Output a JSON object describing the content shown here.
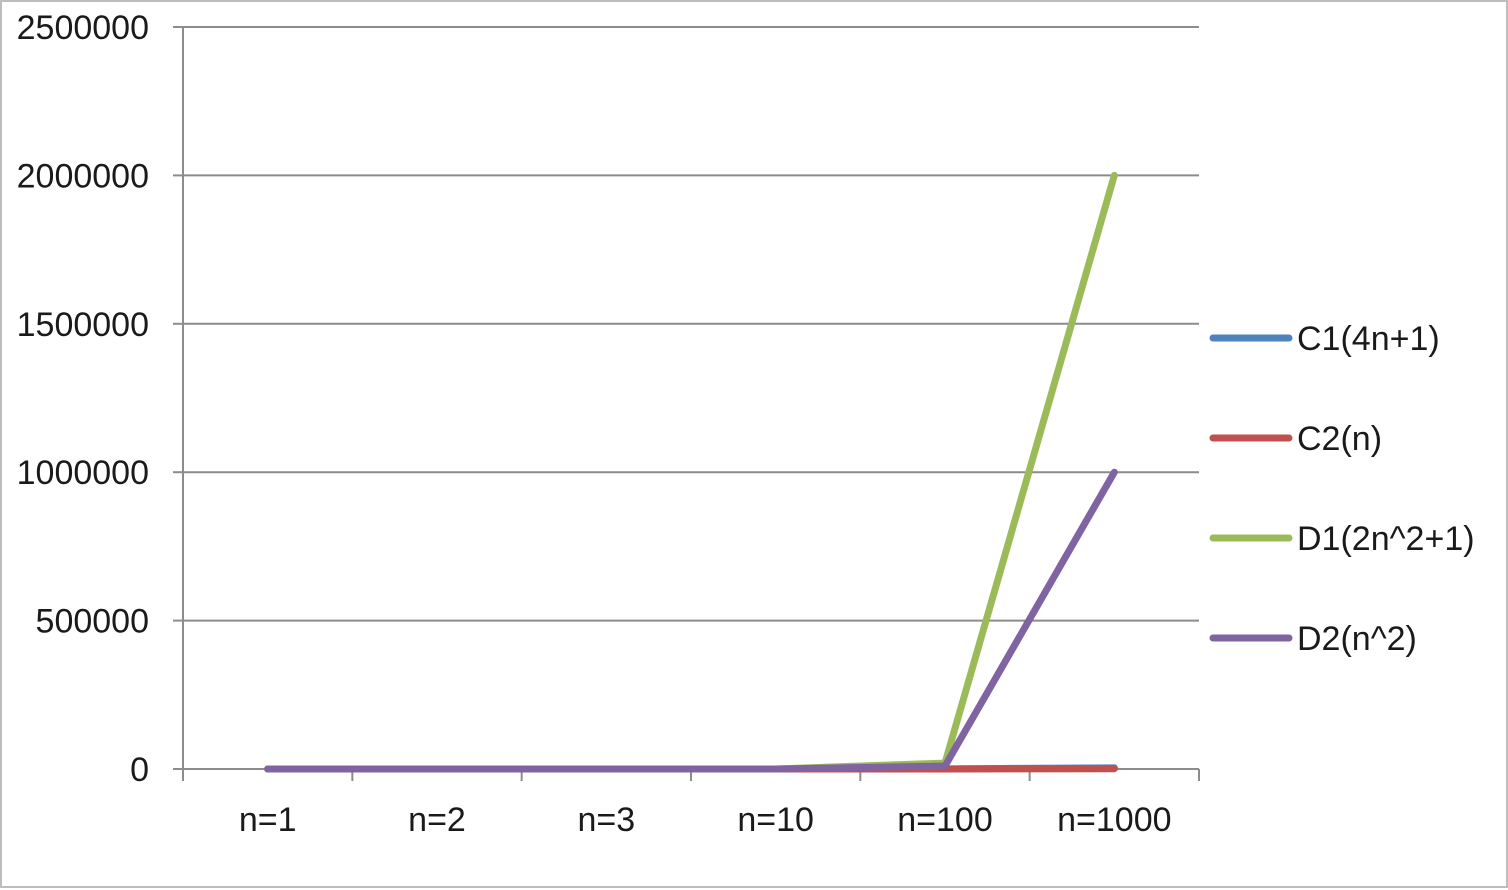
{
  "chart_data": {
    "type": "line",
    "categories": [
      "n=1",
      "n=2",
      "n=3",
      "n=10",
      "n=100",
      "n=1000"
    ],
    "series": [
      {
        "name": "C1(4n+1)",
        "color": "#4f81bd",
        "values": [
          5,
          9,
          13,
          41,
          401,
          4001
        ]
      },
      {
        "name": "C2(n)",
        "color": "#c0504d",
        "values": [
          1,
          2,
          3,
          10,
          100,
          1000
        ]
      },
      {
        "name": "D1(2n^2+1)",
        "color": "#9bbb59",
        "values": [
          3,
          9,
          19,
          201,
          20001,
          2000001
        ]
      },
      {
        "name": "D2(n^2)",
        "color": "#8064a2",
        "values": [
          1,
          4,
          9,
          100,
          10000,
          1000000
        ]
      }
    ],
    "yticks": [
      "0",
      "500000",
      "1000000",
      "1500000",
      "2000000",
      "2500000"
    ],
    "ylim": [
      0,
      2500000
    ],
    "grid": true,
    "legend_position": "right"
  }
}
